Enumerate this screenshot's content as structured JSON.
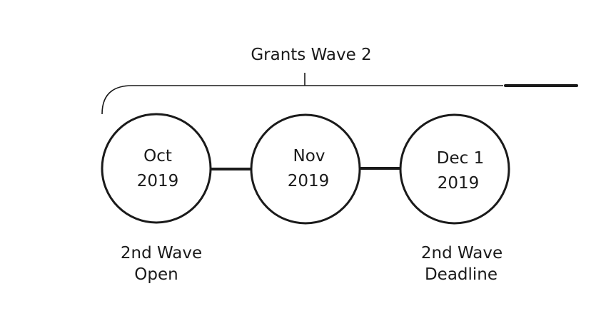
{
  "title": "Grants Wave 2",
  "milestones": [
    {
      "line1": "Oct",
      "line2": "2019"
    },
    {
      "line1": "Nov",
      "line2": "2019"
    },
    {
      "line1": "Dec 1",
      "line2": "2019"
    }
  ],
  "captions": {
    "open": {
      "line1": "2nd Wave",
      "line2": "Open"
    },
    "deadline": {
      "line1": "2nd Wave",
      "line2": "Deadline"
    }
  },
  "colors": {
    "stroke": "#1a1a1a",
    "background": "#ffffff"
  }
}
